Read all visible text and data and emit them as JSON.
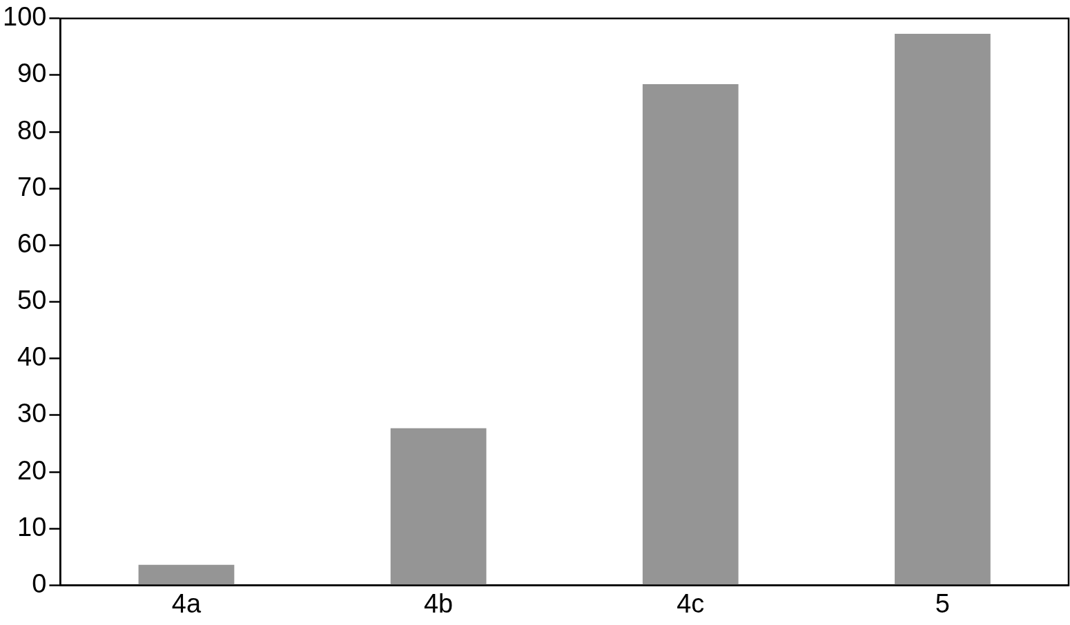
{
  "chart_data": {
    "type": "bar",
    "categories": [
      "4a",
      "4b",
      "4c",
      "5"
    ],
    "values": [
      3.6,
      27.7,
      88.4,
      97.3
    ],
    "color": "#959595",
    "ylim": [
      0,
      100
    ],
    "yticks": [
      0,
      10,
      20,
      30,
      40,
      50,
      60,
      70,
      80,
      90,
      100
    ],
    "grid": false,
    "legend": false
  }
}
